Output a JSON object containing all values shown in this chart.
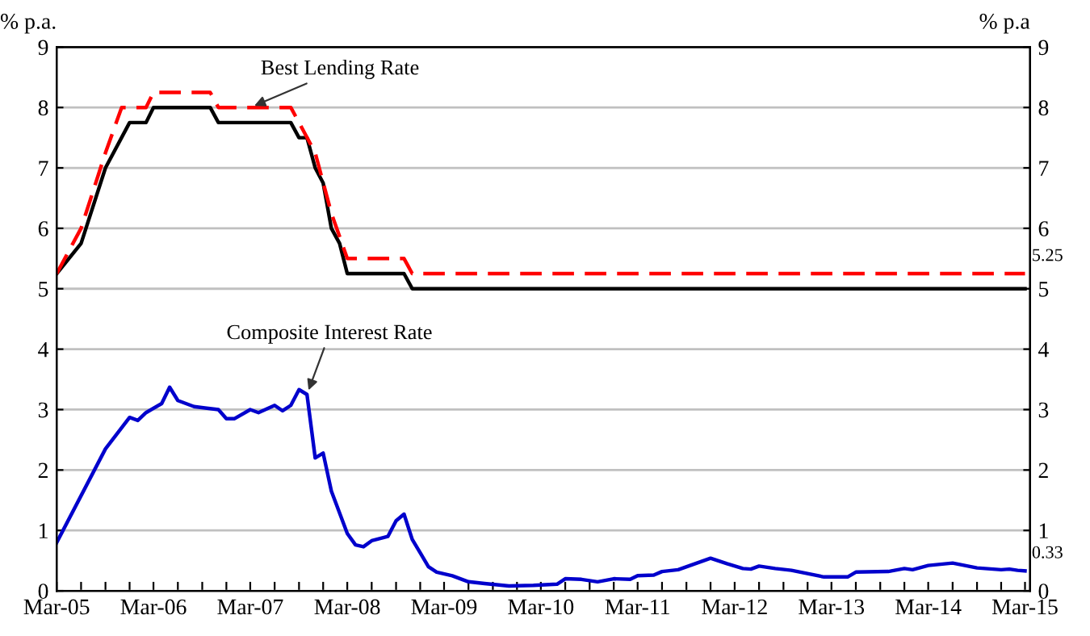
{
  "chart_data": {
    "type": "line",
    "ylabel": "% p.a.",
    "y2label": "% p.a",
    "xlim": [
      "2005-03",
      "2015-03-20"
    ],
    "ylim": [
      0,
      9
    ],
    "yticks": [
      0,
      1,
      2,
      3,
      4,
      5,
      6,
      7,
      8,
      9
    ],
    "y2lim": [
      0,
      9
    ],
    "y2ticks": [
      0,
      1,
      2,
      3,
      4,
      5,
      6,
      7,
      8,
      9
    ],
    "xticks": [
      {
        "value": "2005-03",
        "label": "Mar-05"
      },
      {
        "value": "2005-06",
        "label": null
      },
      {
        "value": "2005-09",
        "label": null
      },
      {
        "value": "2005-12",
        "label": null
      },
      {
        "value": "2006-03",
        "label": "Mar-06"
      },
      {
        "value": "2006-06",
        "label": null
      },
      {
        "value": "2006-09",
        "label": null
      },
      {
        "value": "2006-12",
        "label": null
      },
      {
        "value": "2007-03",
        "label": "Mar-07"
      },
      {
        "value": "2007-06",
        "label": null
      },
      {
        "value": "2007-09",
        "label": null
      },
      {
        "value": "2007-12",
        "label": null
      },
      {
        "value": "2008-03",
        "label": "Mar-08"
      },
      {
        "value": "2008-06",
        "label": null
      },
      {
        "value": "2008-09",
        "label": null
      },
      {
        "value": "2008-12",
        "label": null
      },
      {
        "value": "2009-03",
        "label": "Mar-09"
      },
      {
        "value": "2009-06",
        "label": null
      },
      {
        "value": "2009-09",
        "label": null
      },
      {
        "value": "2009-12",
        "label": null
      },
      {
        "value": "2010-03",
        "label": "Mar-10"
      },
      {
        "value": "2010-06",
        "label": null
      },
      {
        "value": "2010-09",
        "label": null
      },
      {
        "value": "2010-12",
        "label": null
      },
      {
        "value": "2011-03",
        "label": "Mar-11"
      },
      {
        "value": "2011-06",
        "label": null
      },
      {
        "value": "2011-09",
        "label": null
      },
      {
        "value": "2011-12",
        "label": null
      },
      {
        "value": "2012-03",
        "label": "Mar-12"
      },
      {
        "value": "2012-06",
        "label": null
      },
      {
        "value": "2012-09",
        "label": null
      },
      {
        "value": "2012-12",
        "label": null
      },
      {
        "value": "2013-03",
        "label": "Mar-13"
      },
      {
        "value": "2013-06",
        "label": null
      },
      {
        "value": "2013-09",
        "label": null
      },
      {
        "value": "2013-12",
        "label": null
      },
      {
        "value": "2014-03",
        "label": "Mar-14"
      },
      {
        "value": "2014-06",
        "label": null
      },
      {
        "value": "2014-09",
        "label": null
      },
      {
        "value": "2014-12",
        "label": null
      },
      {
        "value": "2015-03",
        "label": "Mar-15"
      }
    ],
    "grid": "y",
    "legend": false,
    "series": [
      {
        "color": "#000000",
        "line_style": "solid",
        "x": [
          "2005-03",
          "2005-06",
          "2005-09",
          "2005-12",
          "2006-02",
          "2006-03",
          "2006-10",
          "2006-11",
          "2007-08",
          "2007-09",
          "2007-10",
          "2007-11",
          "2007-12",
          "2008-01",
          "2008-02",
          "2008-03",
          "2008-10",
          "2008-11",
          "2015-03"
        ],
        "values": [
          5.25,
          5.75,
          7.0,
          7.75,
          7.75,
          8.0,
          8.0,
          7.75,
          7.75,
          7.5,
          7.5,
          7.0,
          6.75,
          6.0,
          5.75,
          5.25,
          5.25,
          5.0,
          5.0
        ]
      },
      {
        "color": "#ff0000",
        "line_style": "dashed",
        "x": [
          "2005-03",
          "2005-06",
          "2005-09",
          "2005-11",
          "2006-02",
          "2006-03",
          "2006-10",
          "2006-11",
          "2007-08",
          "2007-09",
          "2007-11",
          "2008-01",
          "2008-03",
          "2008-10",
          "2008-11",
          "2015-03"
        ],
        "values": [
          5.25,
          6.0,
          7.25,
          8.0,
          8.0,
          8.25,
          8.25,
          8.0,
          8.0,
          7.75,
          7.25,
          6.25,
          5.5,
          5.5,
          5.25,
          5.25
        ],
        "value_labels": [
          null,
          null,
          null,
          null,
          null,
          null,
          null,
          null,
          null,
          null,
          null,
          null,
          null,
          null,
          null,
          "5.25"
        ]
      },
      {
        "color": "#0000cc",
        "line_style": "solid",
        "x": [
          "2005-03",
          "2005-09",
          "2005-12",
          "2006-01",
          "2006-02",
          "2006-04",
          "2006-05",
          "2006-06",
          "2006-08",
          "2006-11",
          "2006-12",
          "2007-01",
          "2007-03",
          "2007-04",
          "2007-06",
          "2007-07",
          "2007-08",
          "2007-09",
          "2007-10",
          "2007-11",
          "2007-12",
          "2008-01",
          "2008-03",
          "2008-04",
          "2008-05",
          "2008-06",
          "2008-08",
          "2008-09",
          "2008-10",
          "2008-11",
          "2008-12",
          "2009-01",
          "2009-02",
          "2009-04",
          "2009-06",
          "2009-08",
          "2009-11",
          "2010-02",
          "2010-05",
          "2010-06",
          "2010-08",
          "2010-10",
          "2010-12",
          "2011-02",
          "2011-03",
          "2011-05",
          "2011-06",
          "2011-08",
          "2011-12",
          "2012-02",
          "2012-04",
          "2012-05",
          "2012-06",
          "2012-08",
          "2012-10",
          "2013-02",
          "2013-05",
          "2013-06",
          "2013-10",
          "2013-12",
          "2014-01",
          "2014-03",
          "2014-06",
          "2014-09",
          "2014-12",
          "2015-01",
          "2015-02",
          "2015-03"
        ],
        "values": [
          0.8,
          2.35,
          2.87,
          2.82,
          2.95,
          3.1,
          3.37,
          3.15,
          3.05,
          3.0,
          2.85,
          2.85,
          3.0,
          2.95,
          3.07,
          2.98,
          3.07,
          3.33,
          3.25,
          2.2,
          2.28,
          1.65,
          0.95,
          0.76,
          0.73,
          0.83,
          0.9,
          1.16,
          1.27,
          0.85,
          0.63,
          0.4,
          0.31,
          0.25,
          0.15,
          0.12,
          0.08,
          0.09,
          0.11,
          0.2,
          0.19,
          0.15,
          0.2,
          0.19,
          0.25,
          0.26,
          0.32,
          0.35,
          0.54,
          0.45,
          0.37,
          0.36,
          0.41,
          0.37,
          0.34,
          0.23,
          0.23,
          0.31,
          0.32,
          0.37,
          0.35,
          0.42,
          0.46,
          0.38,
          0.35,
          0.36,
          0.34,
          0.33
        ],
        "value_labels": [
          null,
          null,
          null,
          null,
          null,
          null,
          null,
          null,
          null,
          null,
          null,
          null,
          null,
          null,
          null,
          null,
          null,
          null,
          null,
          null,
          null,
          null,
          null,
          null,
          null,
          null,
          null,
          null,
          null,
          null,
          null,
          null,
          null,
          null,
          null,
          null,
          null,
          null,
          null,
          null,
          null,
          null,
          null,
          null,
          null,
          null,
          null,
          null,
          null,
          null,
          null,
          null,
          null,
          null,
          null,
          null,
          null,
          null,
          null,
          null,
          null,
          null,
          null,
          null,
          null,
          null,
          null,
          "0.33"
        ]
      }
    ],
    "annotations": [
      {
        "text": "Best Lending Rate",
        "x": "2007-03",
        "y": 8.0
      },
      {
        "text": "Composite Interest Rate",
        "x": "2007-10",
        "y": 3.25
      }
    ]
  }
}
